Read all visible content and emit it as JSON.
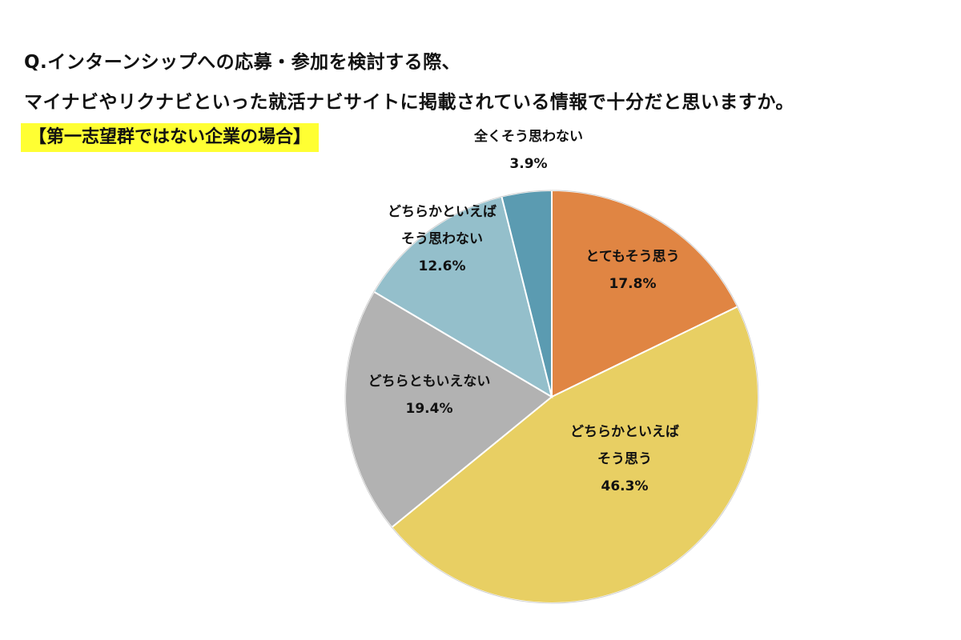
{
  "question": {
    "line1": "Q.インターンシップへの応募・参加を検討する際、",
    "line2": "マイナビやリクナビといった就活ナビサイトに掲載されている情報で十分だと思いますか。"
  },
  "subtitle": {
    "text": "【第一志望群ではない企業の場合】",
    "highlight_color": "#FFFF33"
  },
  "chart_data": {
    "type": "pie",
    "title": "【第一志望群ではない企業の場合】",
    "start": "12 o'clock",
    "direction": "clockwise",
    "slices": [
      {
        "label_lines": [
          "とてもそう思う"
        ],
        "value": 17.8,
        "value_label": "17.8%",
        "color": "#E08543"
      },
      {
        "label_lines": [
          "どちらかといえば",
          "そう思う"
        ],
        "value": 46.3,
        "value_label": "46.3%",
        "color": "#E8CF63"
      },
      {
        "label_lines": [
          "どちらともいえない"
        ],
        "value": 19.4,
        "value_label": "19.4%",
        "color": "#B2B2B2"
      },
      {
        "label_lines": [
          "どちらかといえば",
          "そう思わない"
        ],
        "value": 12.6,
        "value_label": "12.6%",
        "color": "#94BFCB"
      },
      {
        "label_lines": [
          "全くそう思わない"
        ],
        "value": 3.9,
        "value_label": "3.9%",
        "color": "#5B9BB1"
      }
    ]
  }
}
